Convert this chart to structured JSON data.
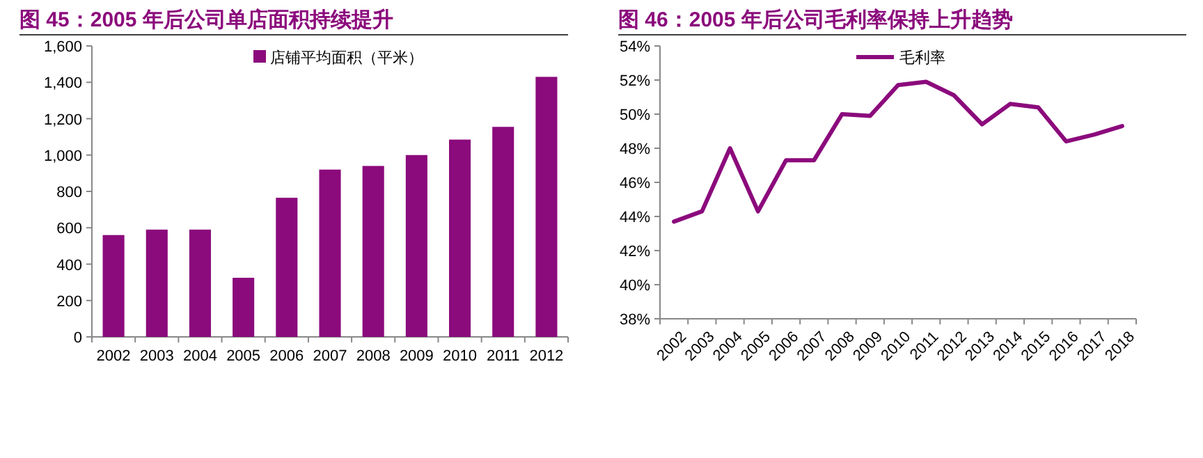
{
  "chart_data": [
    {
      "type": "bar",
      "title": "图 45：2005 年后公司单店面积持续提升",
      "categories": [
        "2002",
        "2003",
        "2004",
        "2005",
        "2006",
        "2007",
        "2008",
        "2009",
        "2010",
        "2011",
        "2012"
      ],
      "series": [
        {
          "name": "店铺平均面积（平米）",
          "color": "#8b0a7c",
          "values": [
            560,
            590,
            590,
            325,
            765,
            920,
            940,
            1000,
            1085,
            1155,
            1430
          ]
        }
      ],
      "ylim": [
        0,
        1600
      ],
      "yticks": [
        {
          "value": 0,
          "label": "0"
        },
        {
          "value": 200,
          "label": "200"
        },
        {
          "value": 400,
          "label": "400"
        },
        {
          "value": 600,
          "label": "600"
        },
        {
          "value": 800,
          "label": "800"
        },
        {
          "value": 1000,
          "label": "1,000"
        },
        {
          "value": 1200,
          "label": "1,200"
        },
        {
          "value": 1400,
          "label": "1,400"
        },
        {
          "value": 1600,
          "label": "1,600"
        }
      ],
      "legend": "top",
      "grid": false
    },
    {
      "type": "line",
      "title": "图 46：2005 年后公司毛利率保持上升趋势",
      "categories": [
        "2002",
        "2003",
        "2004",
        "2005",
        "2006",
        "2007",
        "2008",
        "2009",
        "2010",
        "2011",
        "2012",
        "2013",
        "2014",
        "2015",
        "2016",
        "2017",
        "2018"
      ],
      "series": [
        {
          "name": "毛利率",
          "color": "#8b0a7c",
          "values": [
            43.7,
            44.3,
            48.0,
            44.3,
            47.3,
            47.3,
            50.0,
            49.9,
            51.7,
            51.9,
            51.1,
            49.4,
            50.6,
            50.4,
            48.4,
            48.8,
            49.3
          ]
        }
      ],
      "ylim": [
        38,
        54
      ],
      "yticks": [
        {
          "value": 38,
          "label": "38%"
        },
        {
          "value": 40,
          "label": "40%"
        },
        {
          "value": 42,
          "label": "42%"
        },
        {
          "value": 44,
          "label": "44%"
        },
        {
          "value": 46,
          "label": "46%"
        },
        {
          "value": 48,
          "label": "48%"
        },
        {
          "value": 50,
          "label": "50%"
        },
        {
          "value": 52,
          "label": "52%"
        },
        {
          "value": 54,
          "label": "54%"
        }
      ],
      "legend": "top",
      "grid": false,
      "marker": "none",
      "line_style": "solid"
    }
  ]
}
